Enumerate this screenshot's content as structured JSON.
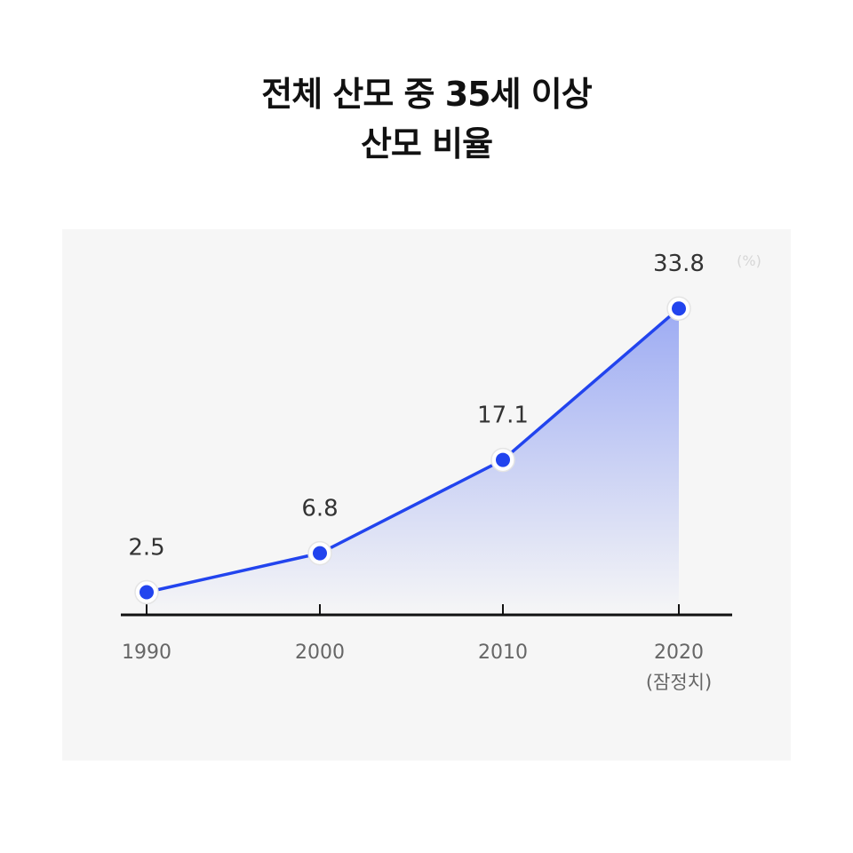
{
  "title_lines": [
    "전체 산모 중 35세 이상",
    "산모 비율"
  ],
  "unit": "(%)",
  "colors": {
    "line": "#2244ee",
    "point": "#2244ee",
    "panel": "#f6f6f6",
    "axis": "#111111",
    "label": "#333333",
    "tick_label": "#666666"
  },
  "chart_data": {
    "type": "line",
    "title": "전체 산모 중 35세 이상 산모 비율",
    "unit": "(%)",
    "categories": [
      "1990",
      "2000",
      "2010",
      "2020"
    ],
    "x_sublabels": [
      "",
      "",
      "",
      "(잠정치)"
    ],
    "values": [
      2.5,
      6.8,
      17.1,
      33.8
    ],
    "value_labels": [
      "2.5",
      "6.8",
      "17.1",
      "33.8"
    ],
    "ylim": [
      0,
      37
    ],
    "grid": false,
    "legend": "none"
  }
}
